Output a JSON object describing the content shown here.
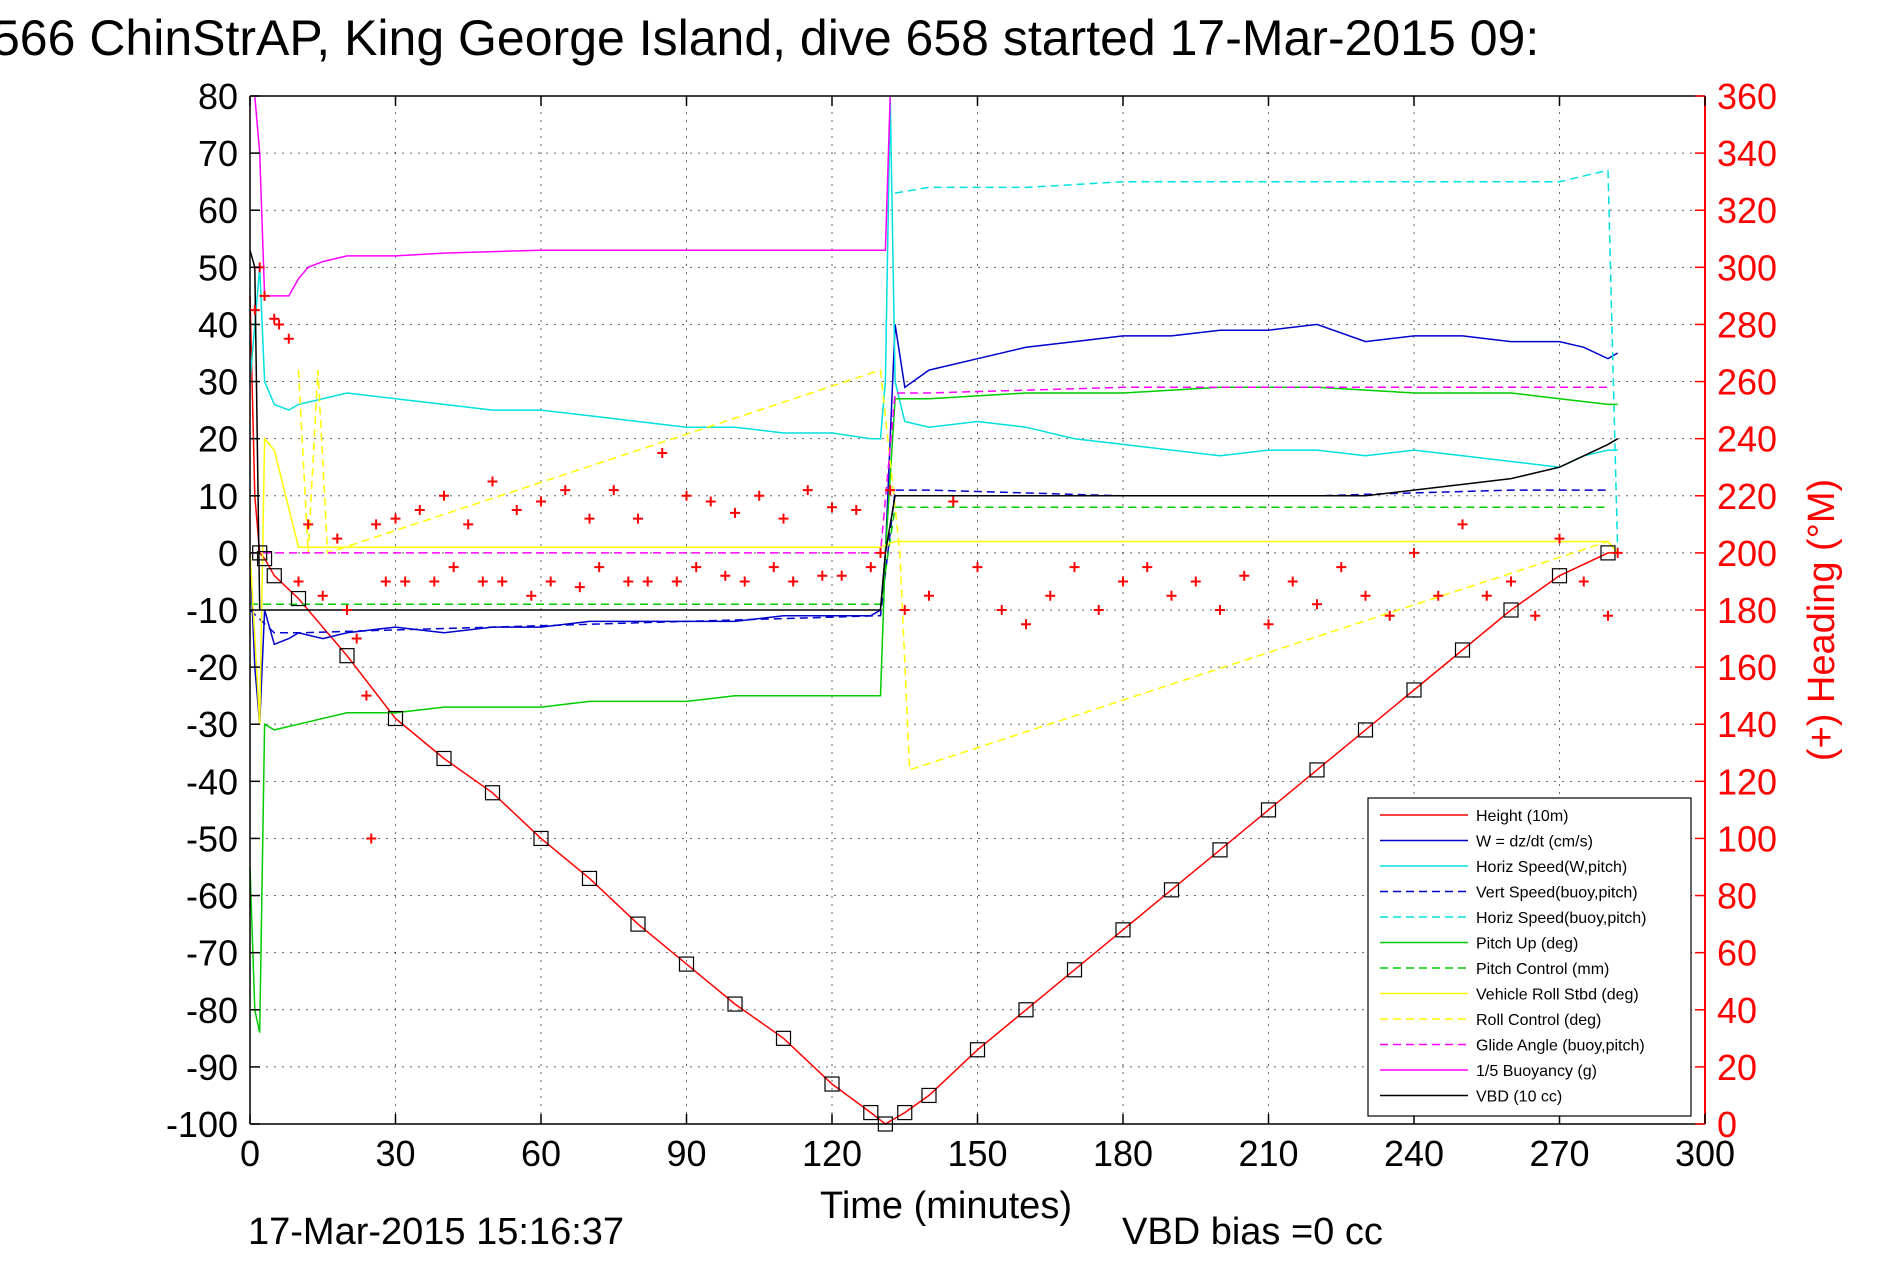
{
  "chart_data": {
    "type": "line",
    "title": "566 ChinStrAP, King George Island, dive 658 started 17-Mar-2015 09:",
    "xlabel": "Time (minutes)",
    "ylabel_right": "(+) Heading (°M)",
    "xlim": [
      0,
      300
    ],
    "ylim": [
      -100,
      80
    ],
    "ylim_right": [
      0,
      360
    ],
    "x_ticks": [
      "0",
      "30",
      "60",
      "90",
      "120",
      "150",
      "180",
      "210",
      "240",
      "270",
      "300"
    ],
    "y_ticks": [
      "80",
      "70",
      "60",
      "50",
      "40",
      "30",
      "20",
      "10",
      "0",
      "-10",
      "-20",
      "-30",
      "-40",
      "-50",
      "-60",
      "-70",
      "-80",
      "-90",
      "-100"
    ],
    "y_right_ticks": [
      "360",
      "340",
      "320",
      "300",
      "280",
      "260",
      "240",
      "220",
      "200",
      "180",
      "160",
      "140",
      "120",
      "100",
      "80",
      "60",
      "40",
      "20",
      "0"
    ],
    "grid": true,
    "legend_position": "lower-right",
    "footer_timestamp": "17-Mar-2015 15:16:37",
    "footer_vbd": "VBD bias =0 cc",
    "series": [
      {
        "name": "Height (10m)",
        "color": "#ff0000",
        "dash": "solid",
        "x": [
          0,
          1,
          2,
          3,
          5,
          10,
          20,
          30,
          40,
          50,
          60,
          70,
          80,
          90,
          100,
          110,
          120,
          128,
          131,
          135,
          140,
          150,
          160,
          170,
          180,
          190,
          200,
          210,
          220,
          230,
          240,
          250,
          260,
          270,
          280,
          282
        ],
        "y": [
          45,
          10,
          0,
          -1,
          -4,
          -8,
          -18,
          -29,
          -36,
          -42,
          -50,
          -57,
          -65,
          -72,
          -79,
          -85,
          -93,
          -98,
          -100,
          -98,
          -95,
          -87,
          -80,
          -73,
          -66,
          -59,
          -52,
          -45,
          -38,
          -31,
          -24,
          -17,
          -10,
          -4,
          0,
          0
        ]
      },
      {
        "name": "W = dz/dt (cm/s)",
        "color": "#0000cc",
        "dash": "solid",
        "x": [
          0,
          1,
          2,
          3,
          5,
          8,
          10,
          15,
          20,
          30,
          40,
          50,
          60,
          70,
          80,
          90,
          100,
          110,
          120,
          128,
          130,
          131,
          132,
          133,
          135,
          140,
          150,
          160,
          170,
          180,
          190,
          200,
          210,
          220,
          230,
          240,
          250,
          260,
          270,
          275,
          280,
          282
        ],
        "y": [
          0,
          -20,
          -30,
          -10,
          -16,
          -15,
          -14,
          -15,
          -14,
          -13,
          -14,
          -13,
          -13,
          -12,
          -12,
          -12,
          -12,
          -11,
          -11,
          -11,
          -10,
          0,
          20,
          40,
          29,
          32,
          34,
          36,
          37,
          38,
          38,
          39,
          39,
          40,
          37,
          38,
          38,
          37,
          37,
          36,
          34,
          35
        ]
      },
      {
        "name": "Horiz Speed(W,pitch)",
        "color": "#00e0e0",
        "dash": "solid",
        "x": [
          0,
          2,
          3,
          5,
          8,
          10,
          20,
          30,
          40,
          50,
          60,
          70,
          80,
          90,
          100,
          110,
          120,
          128,
          130,
          131,
          132,
          133,
          135,
          140,
          150,
          160,
          170,
          180,
          190,
          200,
          210,
          220,
          230,
          240,
          250,
          260,
          270,
          275,
          280,
          282
        ],
        "y": [
          30,
          50,
          30,
          26,
          25,
          26,
          28,
          27,
          26,
          25,
          25,
          24,
          23,
          22,
          22,
          21,
          21,
          20,
          20,
          30,
          80,
          30,
          23,
          22,
          23,
          22,
          20,
          19,
          18,
          17,
          18,
          18,
          17,
          18,
          17,
          16,
          15,
          17,
          18,
          18
        ]
      },
      {
        "name": "Vert Speed(buoy,pitch)",
        "color": "#0000cc",
        "dash": "dashed",
        "x": [
          0,
          5,
          10,
          130,
          133,
          140,
          180,
          220,
          260,
          280
        ],
        "y": [
          -10,
          -14,
          -14,
          -11,
          11,
          11,
          10,
          10,
          11,
          11
        ]
      },
      {
        "name": "Horiz Speed(buoy,pitch)",
        "color": "#00e0e0",
        "dash": "dashed",
        "x": [
          133,
          140,
          160,
          180,
          200,
          220,
          240,
          260,
          270,
          280,
          282
        ],
        "y": [
          63,
          64,
          64,
          65,
          65,
          65,
          65,
          65,
          65,
          67,
          0
        ]
      },
      {
        "name": "Pitch Up (deg)",
        "color": "#00cc00",
        "dash": "solid",
        "x": [
          0,
          1,
          2,
          3,
          5,
          10,
          20,
          30,
          40,
          50,
          60,
          70,
          80,
          90,
          100,
          110,
          120,
          128,
          130,
          131,
          133,
          135,
          140,
          160,
          180,
          200,
          220,
          240,
          260,
          270,
          280,
          282
        ],
        "y": [
          -55,
          -80,
          -84,
          -30,
          -31,
          -30,
          -28,
          -28,
          -27,
          -27,
          -27,
          -26,
          -26,
          -26,
          -25,
          -25,
          -25,
          -25,
          -25,
          0,
          27,
          27,
          27,
          28,
          28,
          29,
          29,
          28,
          28,
          27,
          26,
          26
        ]
      },
      {
        "name": "Pitch Control (mm)",
        "color": "#00cc00",
        "dash": "dashed",
        "x": [
          0,
          5,
          10,
          130,
          133,
          140,
          180,
          220,
          260,
          280
        ],
        "y": [
          -9,
          -9,
          -9,
          -9,
          8,
          8,
          8,
          8,
          8,
          8
        ]
      },
      {
        "name": "Vehicle Roll Stbd (deg)",
        "color": "#ffff00",
        "dash": "solid",
        "x": [
          0,
          2,
          3,
          5,
          10,
          30,
          60,
          90,
          120,
          130,
          133,
          140,
          180,
          220,
          260,
          280,
          282
        ],
        "y": [
          0,
          -30,
          20,
          18,
          1,
          1,
          1,
          1,
          1,
          1,
          2,
          2,
          2,
          2,
          2,
          2,
          0
        ]
      },
      {
        "name": "Roll Control (deg)",
        "color": "#ffff00",
        "dash": "dashed",
        "x": [
          10,
          12,
          14,
          16,
          130,
          134,
          136,
          280
        ],
        "y": [
          32,
          0,
          32,
          0,
          32,
          0,
          -38,
          2
        ]
      },
      {
        "name": "Glide Angle (buoy,pitch)",
        "color": "#ff00ff",
        "dash": "dashed",
        "x": [
          0,
          5,
          10,
          130,
          133,
          140,
          180,
          220,
          260,
          280
        ],
        "y": [
          0,
          0,
          0,
          0,
          28,
          28,
          29,
          29,
          29,
          29
        ]
      },
      {
        "name": "1/5 Buoyancy (g)",
        "color": "#ff00ff",
        "dash": "solid",
        "x": [
          1,
          2,
          3,
          5,
          8,
          10,
          12,
          15,
          20,
          30,
          40,
          60,
          80,
          100,
          120,
          130,
          131,
          132
        ],
        "y": [
          80,
          70,
          45,
          45,
          45,
          48,
          50,
          51,
          52,
          52,
          52.5,
          53,
          53,
          53,
          53,
          53,
          53,
          80
        ]
      },
      {
        "name": "VBD (10 cc)",
        "color": "#000000",
        "dash": "solid",
        "x": [
          0,
          1,
          2,
          3,
          130,
          131,
          133,
          135,
          180,
          230,
          240,
          250,
          260,
          265,
          270,
          275,
          280,
          282
        ],
        "y": [
          53,
          50,
          -10,
          -10,
          -10,
          0,
          10,
          10,
          10,
          10,
          11,
          12,
          13,
          14,
          15,
          17,
          19,
          20
        ]
      }
    ],
    "heading_series": {
      "name": "Heading",
      "axis": "right",
      "color": "#ff0000",
      "marker": "+",
      "x": [
        1,
        2,
        3,
        5,
        6,
        8,
        10,
        12,
        15,
        18,
        20,
        22,
        24,
        25,
        26,
        28,
        30,
        32,
        35,
        38,
        40,
        42,
        45,
        48,
        50,
        52,
        55,
        58,
        60,
        62,
        65,
        68,
        70,
        72,
        75,
        78,
        80,
        82,
        85,
        88,
        90,
        92,
        95,
        98,
        100,
        102,
        105,
        108,
        110,
        112,
        115,
        118,
        120,
        122,
        125,
        128,
        130,
        132,
        135,
        140,
        145,
        150,
        155,
        160,
        165,
        170,
        175,
        180,
        185,
        190,
        195,
        200,
        205,
        210,
        215,
        220,
        225,
        230,
        235,
        240,
        245,
        250,
        255,
        260,
        265,
        270,
        275,
        280,
        282
      ],
      "y": [
        285,
        300,
        290,
        282,
        280,
        275,
        190,
        210,
        185,
        205,
        180,
        170,
        150,
        100,
        210,
        190,
        212,
        190,
        215,
        190,
        220,
        195,
        210,
        190,
        225,
        190,
        215,
        185,
        218,
        190,
        222,
        188,
        212,
        195,
        222,
        190,
        212,
        190,
        235,
        190,
        220,
        195,
        218,
        192,
        214,
        190,
        220,
        195,
        212,
        190,
        222,
        192,
        216,
        192,
        215,
        195,
        200,
        222,
        180,
        185,
        218,
        195,
        180,
        175,
        185,
        195,
        180,
        190,
        195,
        185,
        190,
        180,
        192,
        175,
        190,
        182,
        195,
        185,
        178,
        200,
        185,
        210,
        185,
        190,
        178,
        205,
        190,
        178,
        200
      ]
    }
  }
}
